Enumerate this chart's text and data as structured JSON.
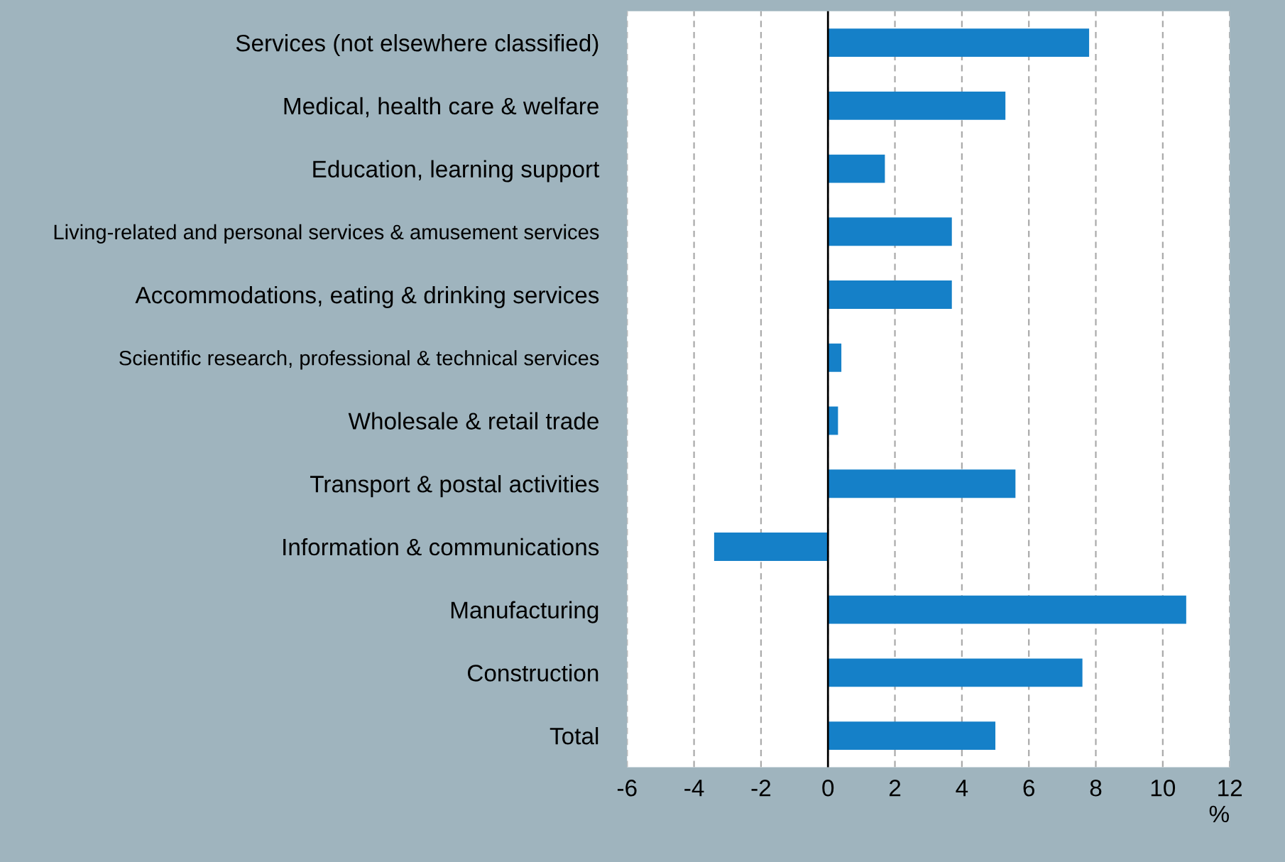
{
  "chart_data": {
    "type": "bar",
    "orientation": "horizontal",
    "xlabel": "%",
    "categories": [
      "Services (not elsewhere classified)",
      "Medical, health care & welfare",
      "Education, learning support",
      "Living-related and personal services & amusement services",
      "Accommodations, eating & drinking services",
      "Scientific research, professional & technical services",
      "Wholesale & retail trade",
      "Transport & postal activities",
      "Information & communications",
      "Manufacturing",
      "Construction",
      "Total"
    ],
    "values": [
      7.8,
      5.3,
      1.7,
      3.7,
      3.7,
      0.4,
      0.3,
      5.6,
      -3.4,
      10.7,
      7.6,
      5.0
    ],
    "color": "#1580c8",
    "xlim": [
      -6,
      12
    ],
    "xticks": [
      -6,
      -4,
      -2,
      0,
      2,
      4,
      6,
      8,
      10,
      12
    ],
    "grid": "x",
    "legend": false
  }
}
